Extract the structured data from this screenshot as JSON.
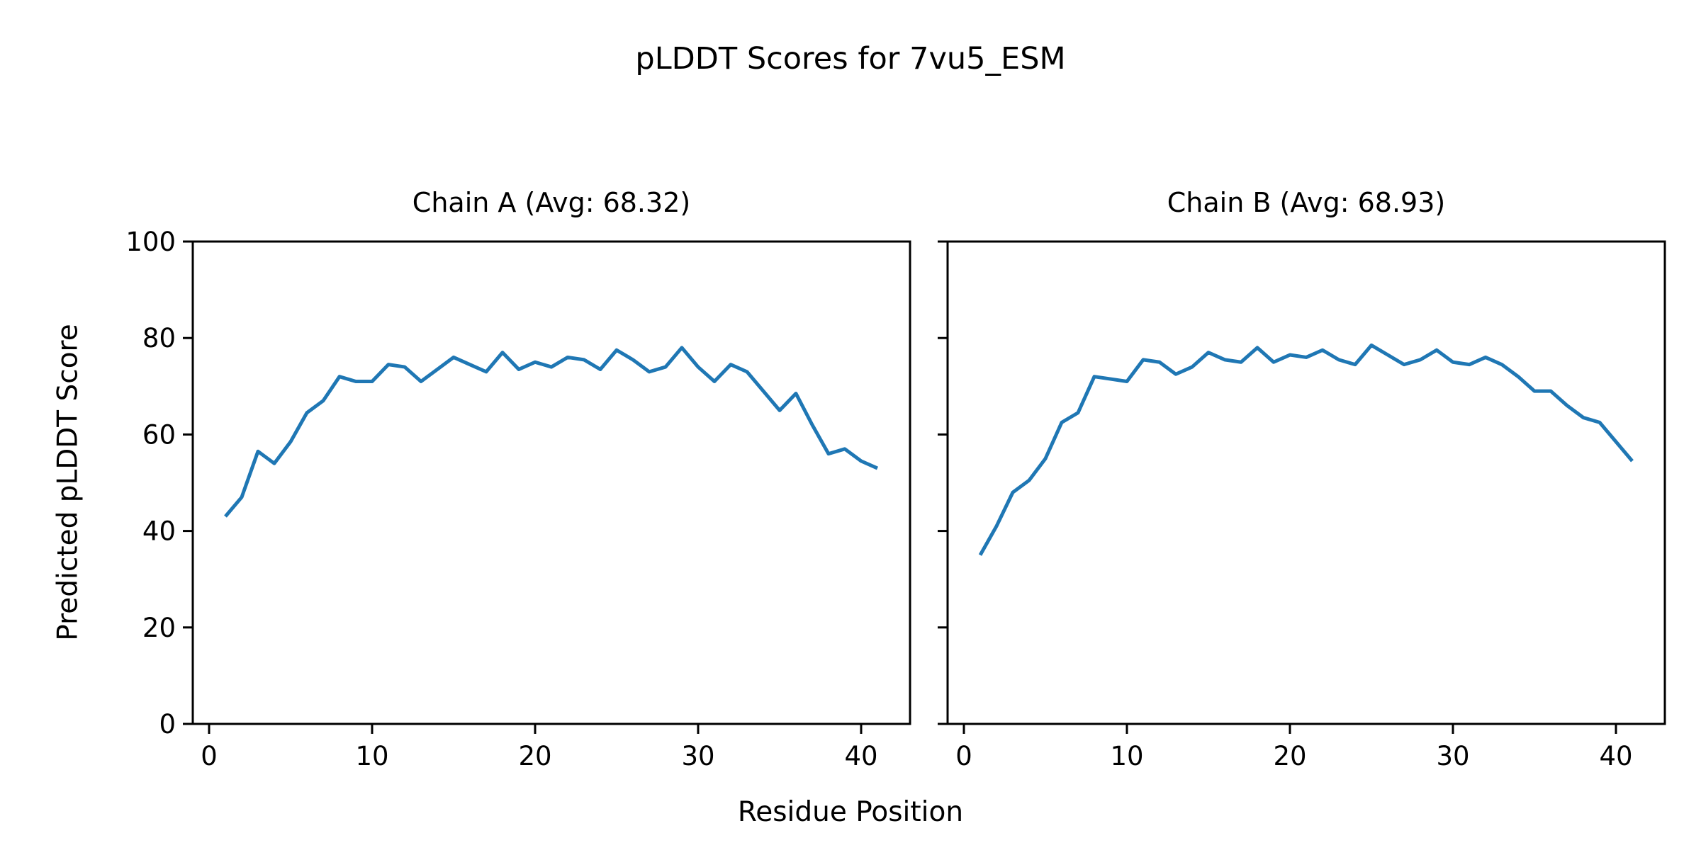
{
  "figure": {
    "title": "pLDDT Scores for 7vu5_ESM",
    "xlabel": "Residue Position",
    "ylabel": "Predicted pLDDT Score"
  },
  "chart_data": {
    "type": "line",
    "title": "pLDDT Scores for 7vu5_ESM",
    "xlabel": "Residue Position",
    "ylabel": "Predicted pLDDT Score",
    "grid": false,
    "legend": "none",
    "line_color": "#1f77b4",
    "axis_color": "#000000",
    "xlim": [
      -1,
      43
    ],
    "ylim": [
      0,
      100
    ],
    "x_ticks": [
      0,
      10,
      20,
      30,
      40
    ],
    "y_ticks": [
      0,
      20,
      40,
      60,
      80,
      100
    ],
    "x": [
      1,
      2,
      3,
      4,
      5,
      6,
      7,
      8,
      9,
      10,
      11,
      12,
      13,
      14,
      15,
      16,
      17,
      18,
      19,
      20,
      21,
      22,
      23,
      24,
      25,
      26,
      27,
      28,
      29,
      30,
      31,
      32,
      33,
      34,
      35,
      36,
      37,
      38,
      39,
      40,
      41
    ],
    "series": [
      {
        "name": "Chain A",
        "subplot_title": "Chain A (Avg: 68.32)",
        "avg": 68.32,
        "values": [
          43,
          47,
          56.5,
          54,
          58.5,
          64.5,
          67,
          72,
          71,
          71,
          74.5,
          74,
          71,
          73.5,
          76,
          74.5,
          73,
          77,
          73.5,
          75,
          74,
          76,
          75.5,
          73.5,
          77.5,
          75.5,
          73,
          74,
          78,
          74,
          71,
          74.5,
          73,
          69,
          65,
          68.5,
          62,
          56,
          57,
          54.5,
          53
        ]
      },
      {
        "name": "Chain B",
        "subplot_title": "Chain B (Avg: 68.93)",
        "avg": 68.93,
        "values": [
          35,
          41,
          48,
          50.5,
          55,
          62.5,
          64.5,
          72,
          71.5,
          71,
          75.5,
          75,
          72.5,
          74,
          77,
          75.5,
          75,
          78,
          75,
          76.5,
          76,
          77.5,
          75.5,
          74.5,
          78.5,
          76.5,
          74.5,
          75.5,
          77.5,
          75,
          74.5,
          76,
          74.5,
          72,
          69,
          69,
          66,
          63.5,
          62.5,
          58.5,
          54.5
        ]
      }
    ]
  }
}
